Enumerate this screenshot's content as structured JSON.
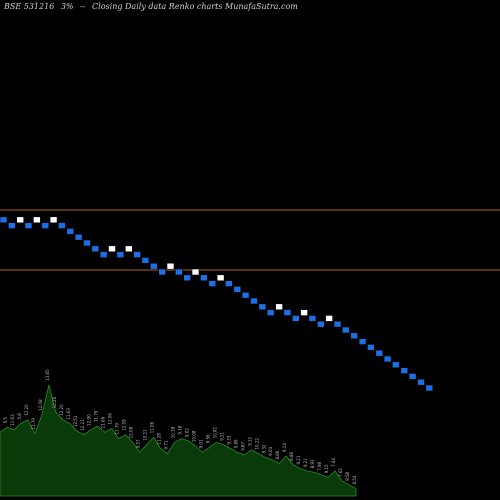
{
  "header": {
    "symbol": "BSE 531216",
    "change": "3%",
    "separator": "--",
    "description": "Closing Daily data Renko charts MunafaSutra.com"
  },
  "colors": {
    "background": "#000000",
    "up_brick": "#ffffff",
    "down_brick": "#1e6fe6",
    "reference_line": "#b5651d",
    "volume_fill": "#0a3a0a",
    "volume_stroke": "#1f8f1f",
    "label_text": "#bfbfbf"
  },
  "chart_data": {
    "type": "renko",
    "bricks": [
      "down",
      "down",
      "up",
      "down",
      "up",
      "down",
      "up",
      "down",
      "down",
      "down",
      "down",
      "down",
      "down",
      "up",
      "down",
      "up",
      "down",
      "down",
      "down",
      "down",
      "up",
      "down",
      "down",
      "up",
      "down",
      "down",
      "up",
      "down",
      "down",
      "down",
      "down",
      "down",
      "down",
      "up",
      "down",
      "down",
      "up",
      "down",
      "down",
      "up",
      "down",
      "down",
      "down",
      "down",
      "down",
      "down",
      "down",
      "down",
      "down",
      "down",
      "down",
      "down"
    ],
    "reference_lines": [
      1,
      2
    ],
    "volume": {
      "values": [
        5.1,
        5.5,
        5.3,
        5.8,
        6.1,
        5.0,
        6.5,
        8.9,
        6.7,
        6.1,
        5.8,
        5.2,
        4.9,
        5.3,
        5.6,
        5.1,
        5.4,
        4.6,
        4.9,
        4.3,
        3.5,
        4.1,
        4.7,
        3.8,
        3.4,
        4.3,
        4.6,
        4.4,
        4.0,
        3.5,
        3.9,
        4.3,
        4.1,
        3.8,
        3.5,
        3.3,
        3.7,
        3.4,
        3.1,
        2.9,
        2.6,
        3.2,
        2.5,
        2.2,
        2.0,
        1.9,
        1.7,
        1.5,
        2.0,
        1.2,
        0.9,
        0.6
      ],
      "labels": [
        "5.14",
        "5.5",
        "11.63",
        "5.8",
        "12.20",
        "11.79",
        "12.08",
        "13.65",
        "12.26",
        "12.20",
        "11.63",
        "12.51",
        "12.21",
        "12.90",
        "11.79",
        "11.66",
        "12.06",
        "11.79",
        "12.59",
        "12.08",
        "9.57",
        "10.21",
        "11.06",
        "11.28",
        "9.71",
        "10.18",
        "9.18",
        "9.02",
        "10.08",
        "9.01",
        "9.56",
        "10.81",
        "9.21",
        "9.33",
        "9.89",
        "9.87",
        "9.12",
        "10.22",
        "9.32",
        "9.04",
        "8.86",
        "9.14",
        "8.86",
        "9.21",
        "9.21",
        "8.93",
        "7.98",
        "9.15",
        "7.44",
        "7.62",
        "8.58",
        "8.54"
      ]
    }
  }
}
